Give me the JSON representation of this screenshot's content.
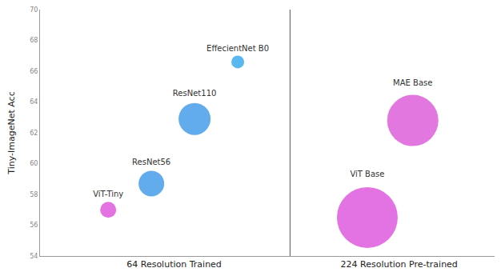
{
  "chart_data": {
    "type": "scatter",
    "marker": "bubble",
    "ylabel": "Tiny-ImageNet Acc",
    "labels": [
      "ViT-Tiny",
      "ResNet56",
      "ResNet110",
      "EffecientNet B0",
      "ViT Base",
      "MAE Base"
    ],
    "x": [
      0.3,
      0.49,
      0.68,
      0.87,
      1.44,
      1.64
    ],
    "values": [
      57.0,
      58.7,
      62.9,
      66.6,
      56.5,
      62.8
    ],
    "sizes": [
      20,
      32,
      40,
      16,
      76,
      64
    ],
    "colors": [
      "#e26ae0",
      "#5aa6ec",
      "#5aa6ec",
      "#4fb4ee",
      "#e26ae0",
      "#e070de"
    ],
    "xlim": [
      0,
      2
    ],
    "xticks": [
      {
        "value": 0.59,
        "label": "64 Resolution Trained"
      },
      {
        "value": 1.58,
        "label": "224 Resolution Pre-trained"
      }
    ],
    "ylim": [
      54,
      70
    ],
    "yticks": [
      54,
      56,
      58,
      60,
      62,
      64,
      66,
      68,
      70
    ],
    "data_labels": true,
    "grid": false
  }
}
